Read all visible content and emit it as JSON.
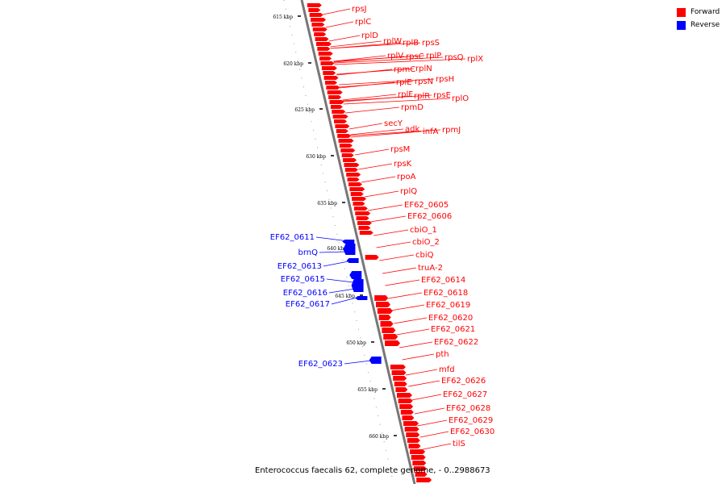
{
  "legend": [
    {
      "label": "Forward",
      "color": "#ff0000"
    },
    {
      "label": "Reverse",
      "color": "#0000ff"
    }
  ],
  "title": "Enterococcus faecalis 62, complete genome, - 0..2988673",
  "ticks": [
    "615 kbp",
    "620 kbp",
    "625 kbp",
    "630 kbp",
    "635 kbp",
    "640 kbp",
    "645 kbp",
    "650 kbp",
    "655 kbp",
    "660 kbp"
  ],
  "forward_genes": [
    "rpsJ",
    "rplC",
    "rplD",
    "rplW",
    "rplB",
    "rpsS",
    "rplV",
    "rpsC",
    "rplP",
    "rpsQ",
    "rplX",
    "rpmC",
    "rplN",
    "rplE",
    "rpsN",
    "rpsH",
    "rplF",
    "rplR",
    "rpsE",
    "rplO",
    "rpmD",
    "secY",
    "adk",
    "infA",
    "rpmJ",
    "rpsM",
    "rpsK",
    "rpoA",
    "rplQ",
    "EF62_0605",
    "EF62_0606",
    "cbiO_1",
    "cbiO_2",
    "cbiQ",
    "truA-2",
    "EF62_0614",
    "EF62_0618",
    "EF62_0619",
    "EF62_0620",
    "EF62_0621",
    "EF62_0622",
    "pth",
    "mfd",
    "EF62_0626",
    "EF62_0627",
    "EF62_0628",
    "EF62_0629",
    "EF62_0630",
    "tilS"
  ],
  "reverse_genes": [
    "EF62_0611",
    "brnQ",
    "EF62_0613",
    "EF62_0615",
    "EF62_0616",
    "EF62_0617",
    "EF62_0623"
  ],
  "colors": {
    "forward": "#ff0000",
    "reverse": "#0000ff",
    "backbone": "#777777"
  }
}
